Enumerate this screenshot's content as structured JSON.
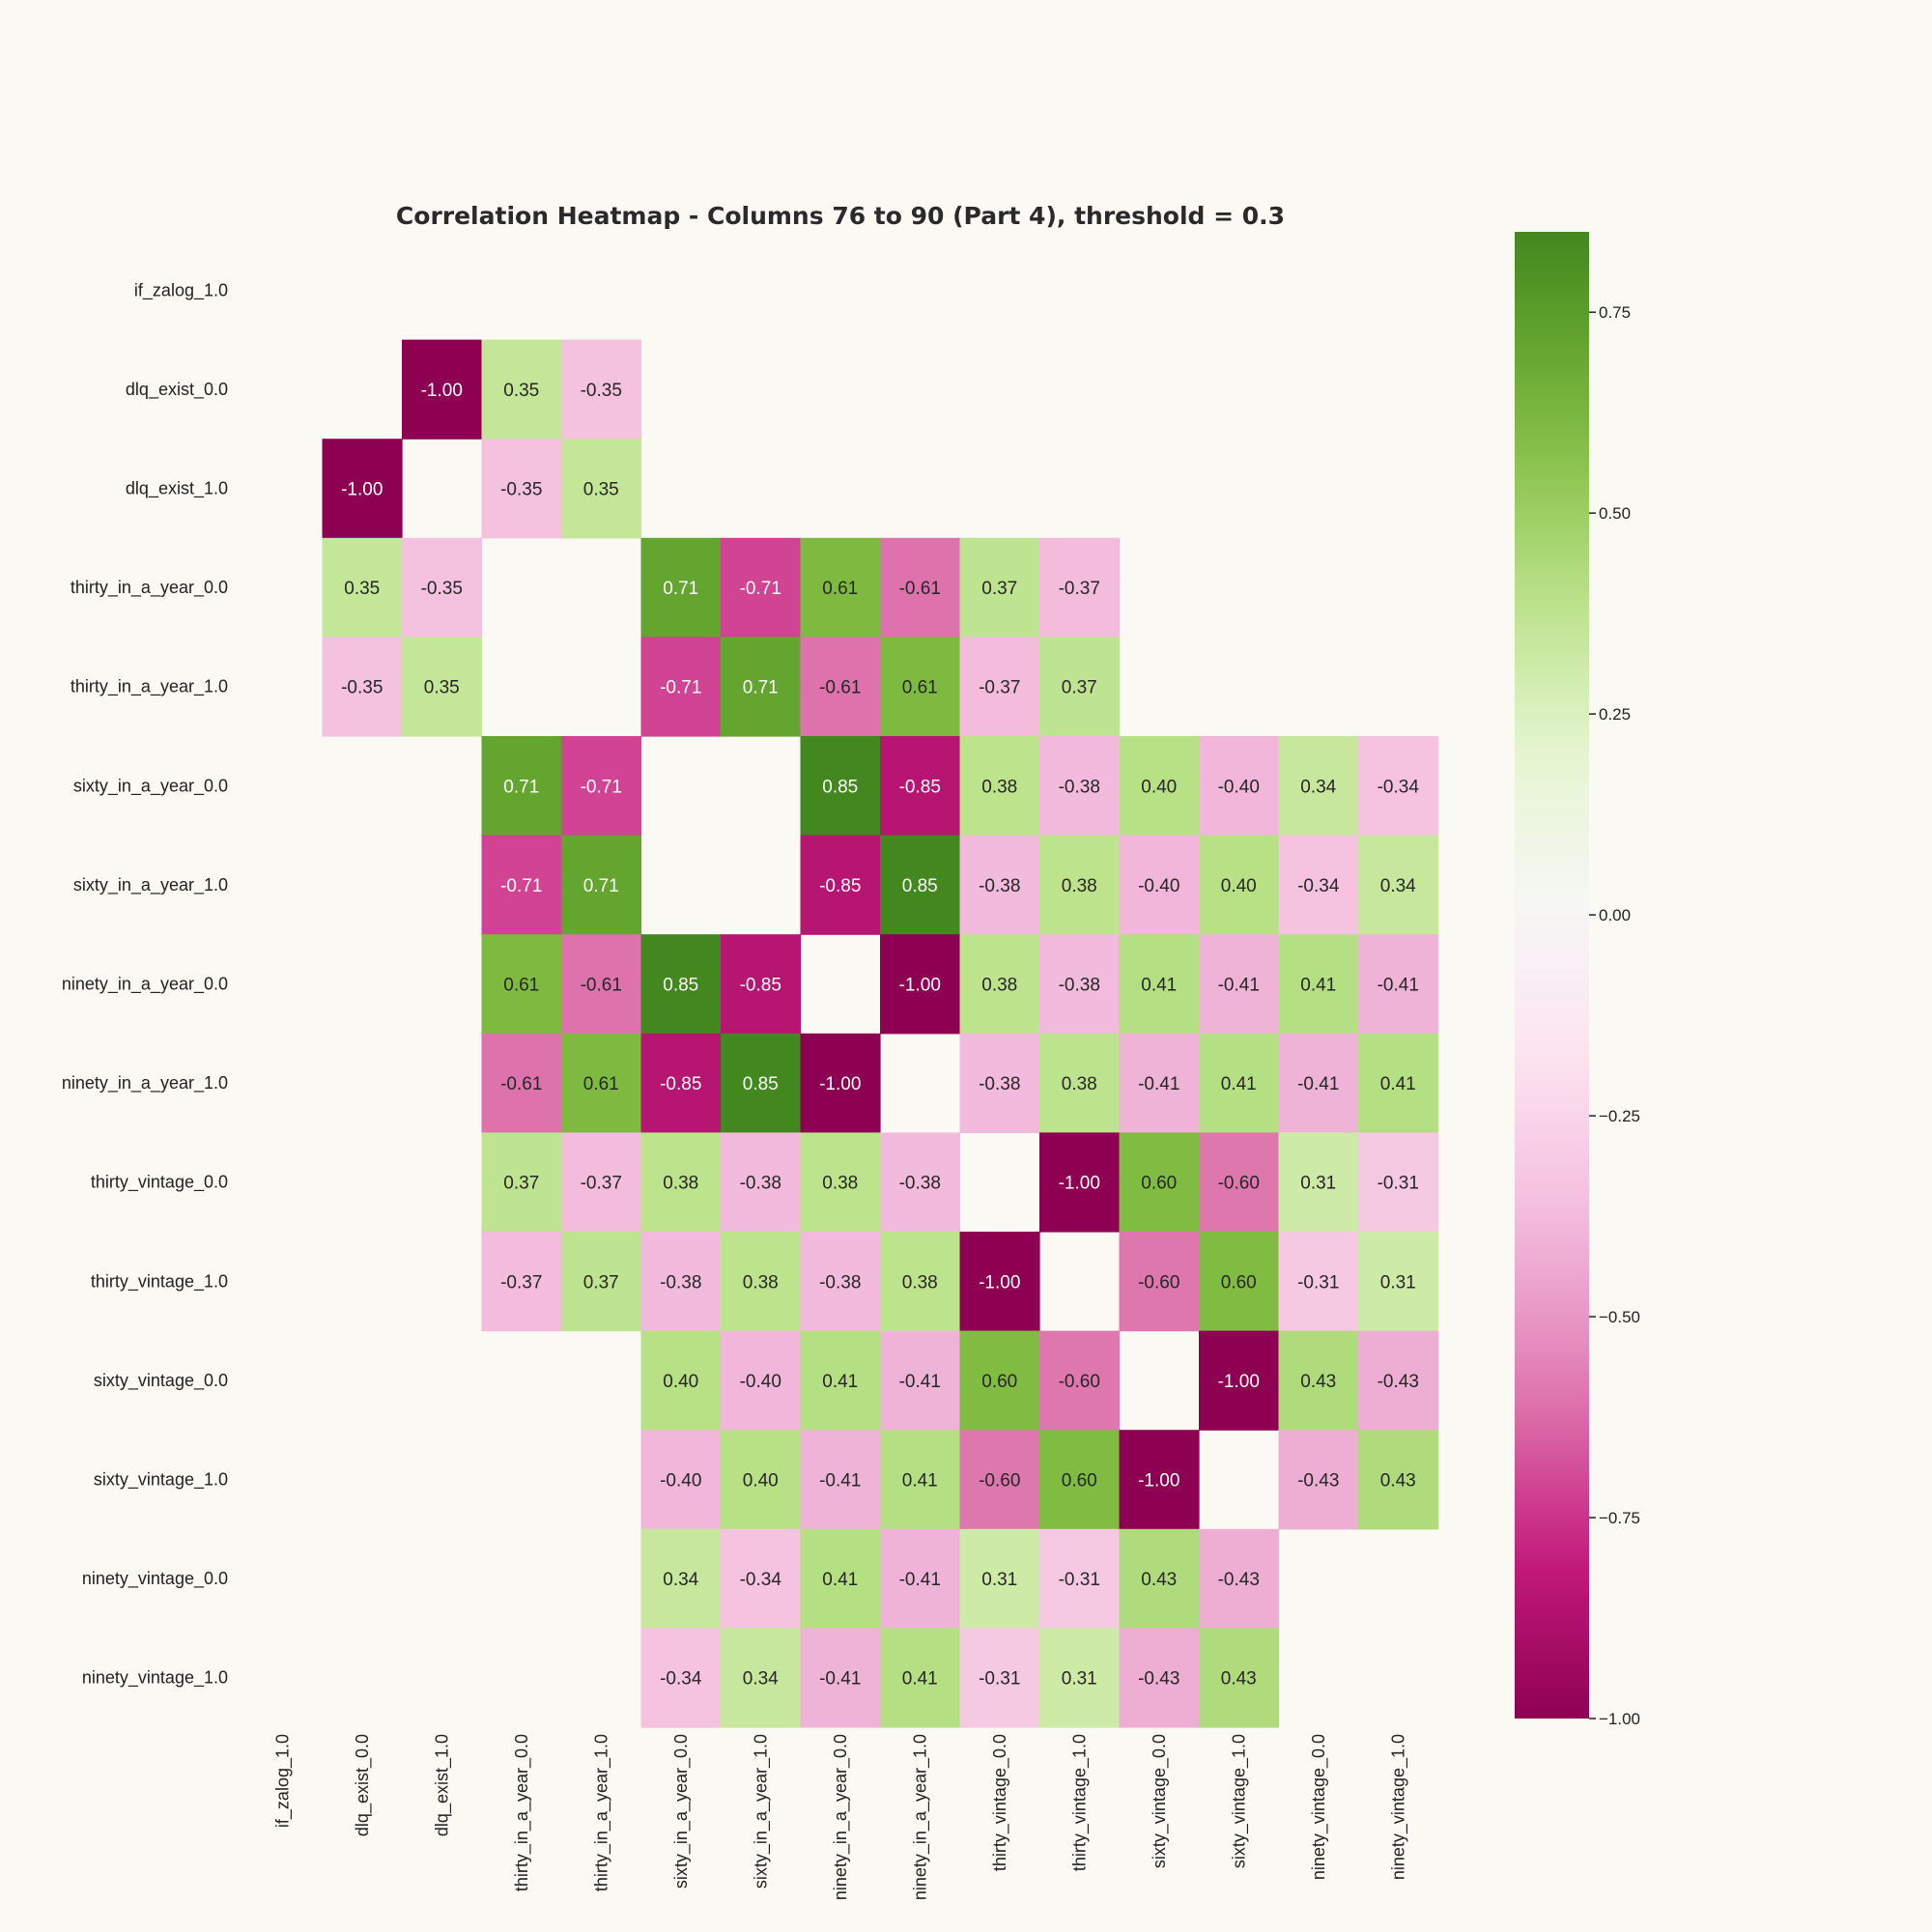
{
  "chart_data": {
    "type": "heatmap",
    "title": "Correlation Heatmap - Columns 76 to 90 (Part 4), threshold = 0.3",
    "row_labels": [
      "if_zalog_1.0",
      "dlq_exist_0.0",
      "dlq_exist_1.0",
      "thirty_in_a_year_0.0",
      "thirty_in_a_year_1.0",
      "sixty_in_a_year_0.0",
      "sixty_in_a_year_1.0",
      "ninety_in_a_year_0.0",
      "ninety_in_a_year_1.0",
      "thirty_vintage_0.0",
      "thirty_vintage_1.0",
      "sixty_vintage_0.0",
      "sixty_vintage_1.0",
      "ninety_vintage_0.0",
      "ninety_vintage_1.0"
    ],
    "col_labels": [
      "if_zalog_1.0",
      "dlq_exist_0.0",
      "dlq_exist_1.0",
      "thirty_in_a_year_0.0",
      "thirty_in_a_year_1.0",
      "sixty_in_a_year_0.0",
      "sixty_in_a_year_1.0",
      "ninety_in_a_year_0.0",
      "ninety_in_a_year_1.0",
      "thirty_vintage_0.0",
      "thirty_vintage_1.0",
      "sixty_vintage_0.0",
      "sixty_vintage_1.0",
      "ninety_vintage_0.0",
      "ninety_vintage_1.0"
    ],
    "values": [
      [
        null,
        null,
        null,
        null,
        null,
        null,
        null,
        null,
        null,
        null,
        null,
        null,
        null,
        null,
        null
      ],
      [
        null,
        null,
        -1.0,
        0.35,
        -0.35,
        null,
        null,
        null,
        null,
        null,
        null,
        null,
        null,
        null,
        null
      ],
      [
        null,
        -1.0,
        null,
        -0.35,
        0.35,
        null,
        null,
        null,
        null,
        null,
        null,
        null,
        null,
        null,
        null
      ],
      [
        null,
        0.35,
        -0.35,
        null,
        null,
        0.71,
        -0.71,
        0.61,
        -0.61,
        0.37,
        -0.37,
        null,
        null,
        null,
        null
      ],
      [
        null,
        -0.35,
        0.35,
        null,
        null,
        -0.71,
        0.71,
        -0.61,
        0.61,
        -0.37,
        0.37,
        null,
        null,
        null,
        null
      ],
      [
        null,
        null,
        null,
        0.71,
        -0.71,
        null,
        null,
        0.85,
        -0.85,
        0.38,
        -0.38,
        0.4,
        -0.4,
        0.34,
        -0.34
      ],
      [
        null,
        null,
        null,
        -0.71,
        0.71,
        null,
        null,
        -0.85,
        0.85,
        -0.38,
        0.38,
        -0.4,
        0.4,
        -0.34,
        0.34
      ],
      [
        null,
        null,
        null,
        0.61,
        -0.61,
        0.85,
        -0.85,
        null,
        -1.0,
        0.38,
        -0.38,
        0.41,
        -0.41,
        0.41,
        -0.41
      ],
      [
        null,
        null,
        null,
        -0.61,
        0.61,
        -0.85,
        0.85,
        -1.0,
        null,
        -0.38,
        0.38,
        -0.41,
        0.41,
        -0.41,
        0.41
      ],
      [
        null,
        null,
        null,
        0.37,
        -0.37,
        0.38,
        -0.38,
        0.38,
        -0.38,
        null,
        -1.0,
        0.6,
        -0.6,
        0.31,
        -0.31
      ],
      [
        null,
        null,
        null,
        -0.37,
        0.37,
        -0.38,
        0.38,
        -0.38,
        0.38,
        -1.0,
        null,
        -0.6,
        0.6,
        -0.31,
        0.31
      ],
      [
        null,
        null,
        null,
        null,
        null,
        0.4,
        -0.4,
        0.41,
        -0.41,
        0.6,
        -0.6,
        null,
        -1.0,
        0.43,
        -0.43
      ],
      [
        null,
        null,
        null,
        null,
        null,
        -0.4,
        0.4,
        -0.41,
        0.41,
        -0.6,
        0.6,
        -1.0,
        null,
        -0.43,
        0.43
      ],
      [
        null,
        null,
        null,
        null,
        null,
        0.34,
        -0.34,
        0.41,
        -0.41,
        0.31,
        -0.31,
        0.43,
        -0.43,
        null,
        null
      ],
      [
        null,
        null,
        null,
        null,
        null,
        -0.34,
        0.34,
        -0.41,
        0.41,
        -0.31,
        0.31,
        -0.43,
        0.43,
        null,
        null
      ]
    ],
    "colorbar": {
      "colormap": "PiYG",
      "vmin": -1.0,
      "vmax": 0.85,
      "ticks": [
        -1.0,
        -0.75,
        -0.5,
        -0.25,
        0.0,
        0.25,
        0.5,
        0.75
      ],
      "tick_labels": [
        "−1.00",
        "−0.75",
        "−0.50",
        "−0.25",
        "0.00",
        "0.25",
        "0.50",
        "0.75"
      ]
    },
    "colors": {
      "background": "#faf9f4",
      "text_dark": "#262626",
      "text_light": "#ffffff"
    }
  }
}
